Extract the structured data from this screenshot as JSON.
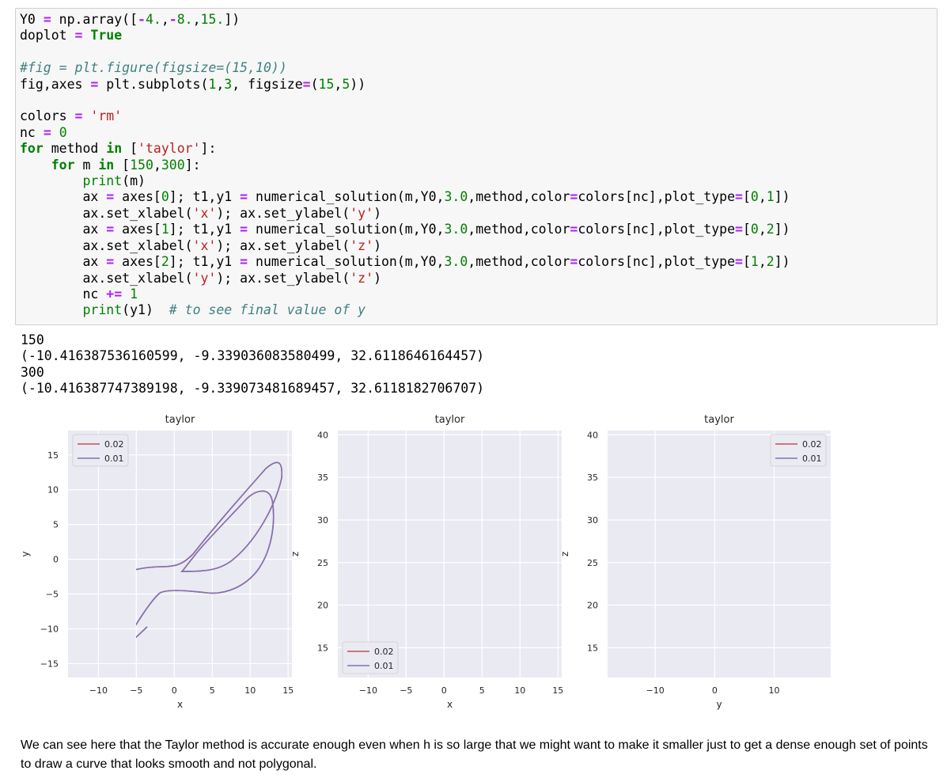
{
  "code_cell": {
    "lines": [
      "Y0 = np.array([-4.,-8.,15.])",
      "doplot = True",
      "",
      "#fig = plt.figure(figsize=(15,10))",
      "fig,axes = plt.subplots(1,3, figsize=(15,5))",
      "",
      "colors = 'rm'",
      "nc = 0",
      "for method in ['taylor']:",
      "    for m in [150,300]:",
      "        print(m)",
      "        ax = axes[0]; t1,y1 = numerical_solution(m,Y0,3.0,method,color=colors[nc],plot_type=[0,1])",
      "        ax.set_xlabel('x'); ax.set_ylabel('y')",
      "        ax = axes[1]; t1,y1 = numerical_solution(m,Y0,3.0,method,color=colors[nc],plot_type=[0,2])",
      "        ax.set_xlabel('x'); ax.set_ylabel('z')",
      "        ax = axes[2]; t1,y1 = numerical_solution(m,Y0,3.0,method,color=colors[nc],plot_type=[1,2])",
      "        ax.set_xlabel('y'); ax.set_ylabel('z')",
      "        nc += 1",
      "        print(y1)  # to see final value of y"
    ]
  },
  "output": {
    "lines": [
      "150",
      "(-10.416387536160599, -9.339036083580499, 32.6118646164457)",
      "300",
      "(-10.416387747389198, -9.339073481689457, 32.6118182706707)"
    ]
  },
  "chart_data": [
    {
      "type": "line",
      "title": "taylor",
      "xlabel": "x",
      "ylabel": "y",
      "xlim": [
        -14,
        15.5
      ],
      "ylim": [
        -17,
        18.5
      ],
      "xticks": [
        "−10",
        "−5",
        "0",
        "5",
        "10",
        "15"
      ],
      "xtick_values": [
        -10,
        -5,
        0,
        5,
        10,
        15
      ],
      "yticks": [
        "15",
        "10",
        "5",
        "0",
        "−5",
        "−10",
        "−15"
      ],
      "ytick_values": [
        15,
        10,
        5,
        0,
        -5,
        -10,
        -15
      ],
      "legend_position": "top-left",
      "series": [
        {
          "name": "0.02",
          "color": "#c44e52"
        },
        {
          "name": "0.01",
          "color": "#8172b2"
        }
      ]
    },
    {
      "type": "line",
      "title": "taylor",
      "xlabel": "x",
      "ylabel": "z",
      "xlim": [
        -14,
        15.5
      ],
      "ylim": [
        11.5,
        40.5
      ],
      "xticks": [
        "−10",
        "−5",
        "0",
        "5",
        "10",
        "15"
      ],
      "xtick_values": [
        -10,
        -5,
        0,
        5,
        10,
        15
      ],
      "yticks": [
        "40",
        "35",
        "30",
        "25",
        "20",
        "15"
      ],
      "ytick_values": [
        40,
        35,
        30,
        25,
        20,
        15
      ],
      "legend_position": "bottom-left",
      "series": [
        {
          "name": "0.02",
          "color": "#c44e52"
        },
        {
          "name": "0.01",
          "color": "#8172b2"
        }
      ]
    },
    {
      "type": "line",
      "title": "taylor",
      "xlabel": "y",
      "ylabel": "z",
      "xlim": [
        -18,
        19.5
      ],
      "ylim": [
        11.5,
        40.5
      ],
      "xticks": [
        "−10",
        "0",
        "10"
      ],
      "xtick_values": [
        -10,
        0,
        10
      ],
      "yticks": [
        "40",
        "35",
        "30",
        "25",
        "20",
        "15"
      ],
      "ytick_values": [
        40,
        35,
        30,
        25,
        20,
        15
      ],
      "legend_position": "top-right",
      "series": [
        {
          "name": "0.02",
          "color": "#c44e52"
        },
        {
          "name": "0.01",
          "color": "#8172b2"
        }
      ]
    }
  ],
  "markdown": {
    "text": "We can see here that the Taylor method is accurate enough even when h is so large that we might want to make it smaller just to get a dense enough set of points to draw a curve that looks smooth and not polygonal."
  }
}
